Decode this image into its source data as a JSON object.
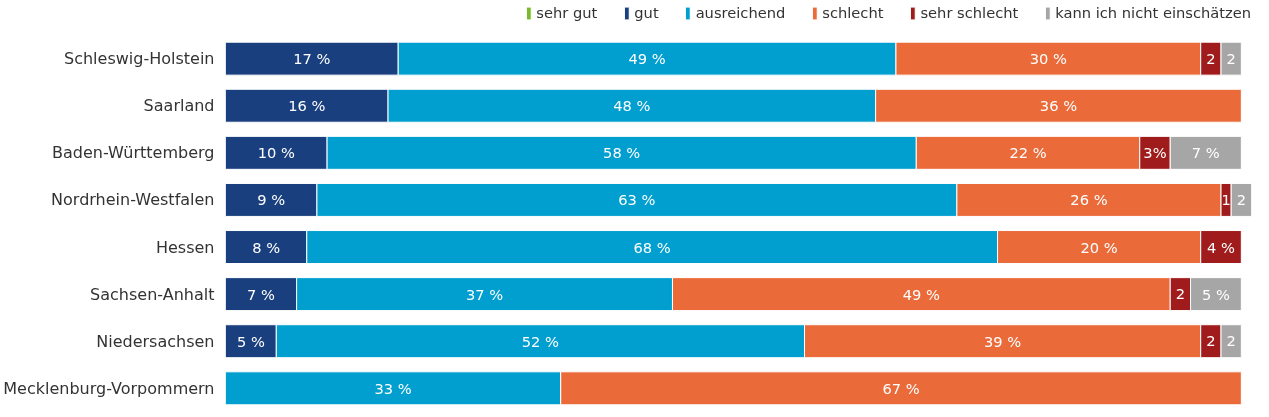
{
  "chart_data": {
    "type": "bar",
    "orientation": "horizontal",
    "stacked": true,
    "legend": "top",
    "tick_labels": "y",
    "xlim": [
      0,
      101
    ],
    "categories": [
      "Schleswig-Holstein",
      "Saarland",
      "Baden-Württemberg",
      "Nordrhein-Westfalen",
      "Hessen",
      "Sachsen-Anhalt",
      "Niedersachsen",
      "Mecklenburg-Vorpommern"
    ],
    "series": [
      {
        "name": "sehr gut",
        "color": "#7ab929",
        "values": [
          null,
          null,
          null,
          null,
          null,
          null,
          null,
          null
        ],
        "value_labels": [
          null,
          null,
          null,
          null,
          null,
          null,
          null,
          null
        ]
      },
      {
        "name": "gut",
        "color": "#1a3f7e",
        "values": [
          17,
          16,
          10,
          9,
          8,
          7,
          5,
          null
        ],
        "value_labels": [
          "17 %",
          "16 %",
          "10 %",
          "9 %",
          "8 %",
          "7 %",
          "5 %",
          null
        ]
      },
      {
        "name": "ausreichend",
        "color": "#009fd0",
        "values": [
          49,
          48,
          58,
          63,
          68,
          37,
          52,
          33
        ],
        "value_labels": [
          "49 %",
          "48 %",
          "58 %",
          "63 %",
          "68 %",
          "37 %",
          "52 %",
          "33 %"
        ]
      },
      {
        "name": "schlecht",
        "color": "#ea6a3a",
        "values": [
          30,
          36,
          22,
          26,
          20,
          49,
          39,
          67
        ],
        "value_labels": [
          "30 %",
          "36 %",
          "22 %",
          "26 %",
          "20 %",
          "49 %",
          "39 %",
          "67 %"
        ]
      },
      {
        "name": "sehr schlecht",
        "color": "#a01c1c",
        "values": [
          2,
          null,
          3,
          1,
          4,
          2,
          2,
          null
        ],
        "value_labels": [
          "2",
          null,
          "3%",
          "1",
          "4 %",
          "2",
          "2",
          null
        ]
      },
      {
        "name": "kann ich nicht einschätzen",
        "color": "#a6a6a6",
        "values": [
          2,
          null,
          7,
          2,
          null,
          5,
          2,
          null
        ],
        "value_labels": [
          "2",
          null,
          "7 %",
          "2",
          null,
          "5 %",
          "2",
          null
        ]
      }
    ]
  }
}
